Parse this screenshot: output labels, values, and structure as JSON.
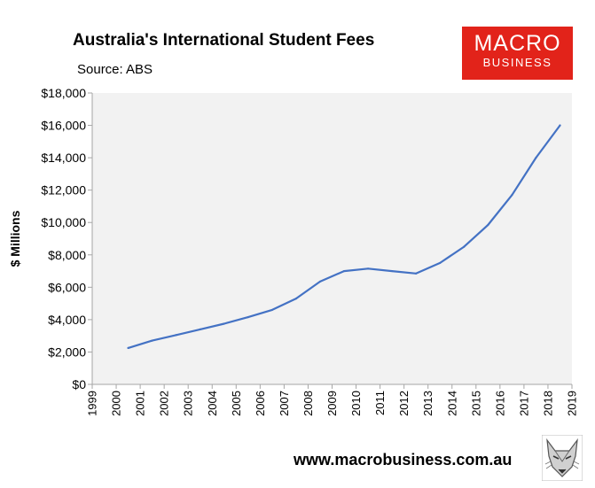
{
  "header": {
    "title": "Australia's International Student Fees",
    "source": "Source: ABS"
  },
  "logo": {
    "line1": "MACRO",
    "line2": "BUSINESS"
  },
  "footer": {
    "url": "www.macrobusiness.com.au"
  },
  "colors": {
    "line": "#4472c4",
    "plot_bg": "#f2f2f2",
    "logo_bg": "#e2231a"
  },
  "chart_data": {
    "type": "line",
    "title": "Australia's International Student Fees",
    "subtitle": "Source: ABS",
    "xlabel": "",
    "ylabel": "$ Millions",
    "categories": [
      "1999",
      "2000",
      "2001",
      "2002",
      "2003",
      "2004",
      "2005",
      "2006",
      "2007",
      "2008",
      "2009",
      "2010",
      "2011",
      "2012",
      "2013",
      "2014",
      "2015",
      "2016",
      "2017",
      "2018",
      "2019"
    ],
    "yticks": [
      "$0",
      "$2,000",
      "$4,000",
      "$6,000",
      "$8,000",
      "$10,000",
      "$12,000",
      "$14,000",
      "$16,000",
      "$18,000"
    ],
    "ylim": [
      0,
      18000
    ],
    "grid": false,
    "series": [
      {
        "x": [
          2000.5,
          2001.5,
          2002.5,
          2003.5,
          2004.5,
          2005.5,
          2006.5,
          2007.5,
          2008.5,
          2009.5,
          2010.5,
          2011.5,
          2012.5,
          2013.5,
          2014.5,
          2015.5,
          2016.5,
          2017.5,
          2018.5
        ],
        "values": [
          2250,
          2700,
          3050,
          3400,
          3750,
          4150,
          4600,
          5300,
          6350,
          7000,
          7150,
          7000,
          6850,
          7500,
          8500,
          9850,
          11700,
          14000,
          16000
        ]
      }
    ]
  }
}
